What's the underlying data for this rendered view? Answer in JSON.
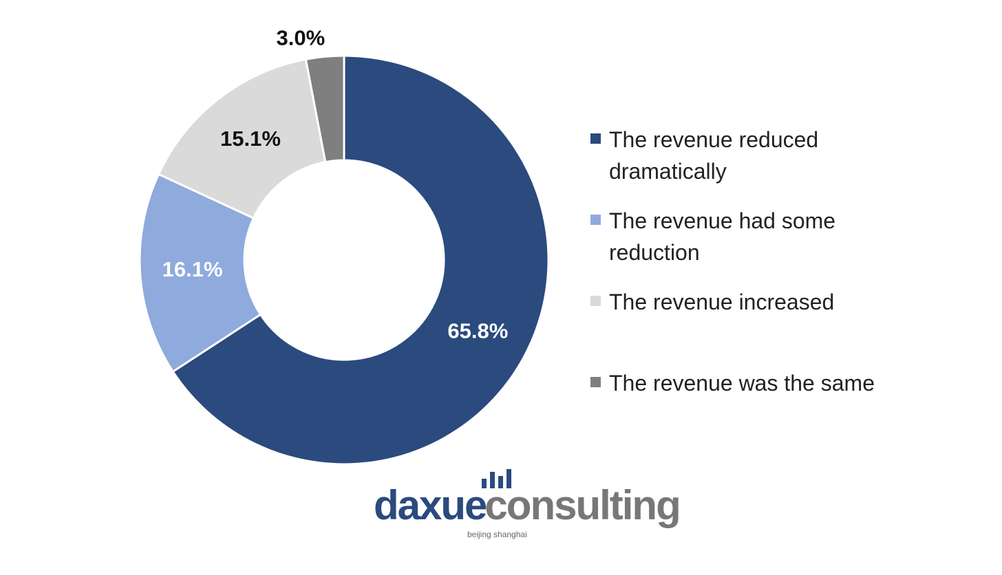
{
  "chart_data": {
    "type": "donut",
    "series": [
      {
        "name": "The revenue reduced dramatically",
        "color": "#2b4a7e",
        "values": [
          65.8
        ],
        "value_labels": [
          "65.8%"
        ]
      },
      {
        "name": "The revenue had some reduction",
        "color": "#8faadc",
        "values": [
          16.1
        ],
        "value_labels": [
          "16.1%"
        ]
      },
      {
        "name": "The revenue increased",
        "color": "#dadada",
        "values": [
          15.1
        ],
        "value_labels": [
          "15.1%"
        ]
      },
      {
        "name": "The revenue was the same",
        "color": "#7f7f7f",
        "values": [
          3.0
        ],
        "value_labels": [
          "3.0%"
        ]
      }
    ],
    "legend": "right"
  },
  "logo": {
    "brand_first": "daxue",
    "brand_second": "consulting",
    "tagline": "beijing shanghai"
  }
}
